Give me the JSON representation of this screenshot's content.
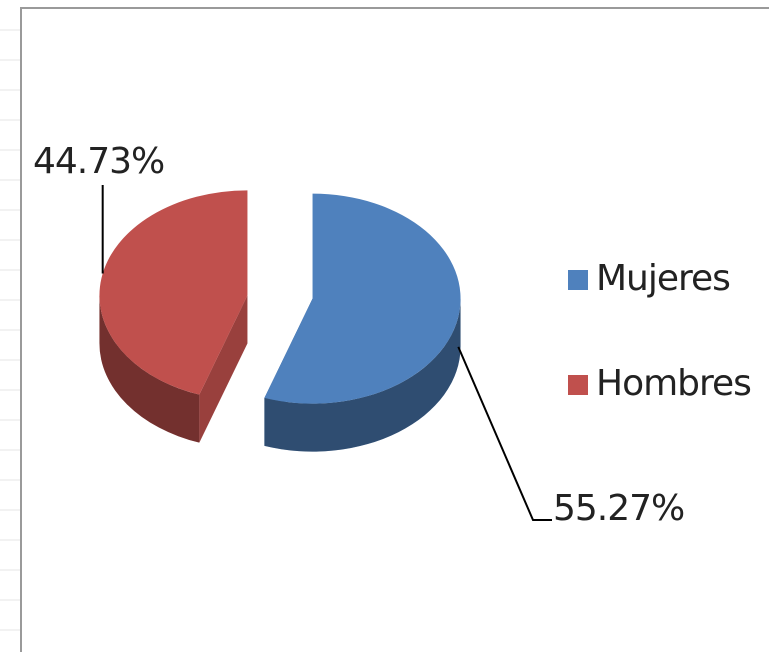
{
  "chart_data": {
    "type": "pie3d",
    "categories": [
      "Mujeres",
      "Hombres"
    ],
    "values": [
      55.27,
      44.73
    ],
    "value_labels": [
      "55.27%",
      "44.73%"
    ],
    "colors": [
      "#4f81bd",
      "#c0504d"
    ],
    "legend": "right"
  }
}
